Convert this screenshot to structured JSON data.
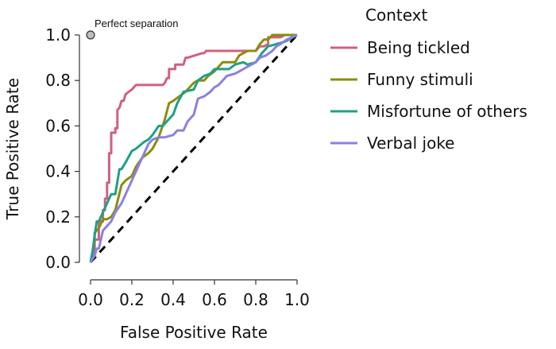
{
  "chart_data": {
    "type": "line",
    "title": "",
    "xlabel": "False Positive Rate",
    "ylabel": "True Positive Rate",
    "xlim": [
      0,
      1
    ],
    "ylim": [
      0,
      1
    ],
    "x_ticks": [
      "0.0",
      "0.2",
      "0.4",
      "0.6",
      "0.8",
      "1.0"
    ],
    "y_ticks": [
      "0.0",
      "0.2",
      "0.4",
      "0.6",
      "0.8",
      "1.0"
    ],
    "grid": false,
    "legend_title": "Context",
    "legend_position": "right",
    "reference_line": {
      "style": "dashed",
      "color": "#000000",
      "x": [
        0,
        1
      ],
      "y": [
        0,
        1
      ]
    },
    "annotation": {
      "label": "Perfect separation",
      "x": 0,
      "y": 1
    },
    "series": [
      {
        "name": "Being tickled",
        "color": "#D0607F",
        "x": [
          0,
          0.02,
          0.02,
          0.04,
          0.04,
          0.06,
          0.06,
          0.07,
          0.07,
          0.08,
          0.08,
          0.09,
          0.09,
          0.1,
          0.1,
          0.12,
          0.12,
          0.13,
          0.13,
          0.14,
          0.15,
          0.16,
          0.17,
          0.2,
          0.22,
          0.25,
          0.28,
          0.33,
          0.35,
          0.36,
          0.37,
          0.38,
          0.38,
          0.41,
          0.41,
          0.45,
          0.46,
          0.47,
          0.47,
          0.54,
          0.55,
          0.56,
          0.76,
          0.78,
          0.8,
          0.82,
          0.84,
          0.86,
          0.86,
          0.92,
          0.94,
          1.0
        ],
        "y": [
          0,
          0.05,
          0.1,
          0.1,
          0.18,
          0.18,
          0.23,
          0.23,
          0.28,
          0.28,
          0.35,
          0.35,
          0.48,
          0.48,
          0.57,
          0.57,
          0.59,
          0.59,
          0.67,
          0.68,
          0.71,
          0.71,
          0.74,
          0.76,
          0.78,
          0.78,
          0.78,
          0.78,
          0.78,
          0.79,
          0.81,
          0.81,
          0.85,
          0.85,
          0.87,
          0.87,
          0.9,
          0.9,
          0.9,
          0.92,
          0.92,
          0.93,
          0.93,
          0.93,
          0.93,
          0.95,
          0.95,
          0.96,
          0.99,
          0.99,
          1.0,
          1.0
        ]
      },
      {
        "name": "Funny stimuli",
        "color": "#8C8C0D",
        "x": [
          0,
          0.01,
          0.02,
          0.02,
          0.04,
          0.06,
          0.08,
          0.1,
          0.12,
          0.15,
          0.17,
          0.2,
          0.22,
          0.25,
          0.28,
          0.3,
          0.33,
          0.36,
          0.38,
          0.4,
          0.43,
          0.46,
          0.48,
          0.5,
          0.52,
          0.55,
          0.57,
          0.6,
          0.62,
          0.64,
          0.66,
          0.7,
          0.72,
          0.76,
          0.8,
          0.82,
          0.84,
          0.86,
          0.88,
          0.92,
          0.96,
          1.0
        ],
        "y": [
          0,
          0.05,
          0.1,
          0.13,
          0.15,
          0.19,
          0.19,
          0.2,
          0.23,
          0.34,
          0.36,
          0.38,
          0.42,
          0.46,
          0.48,
          0.5,
          0.55,
          0.63,
          0.7,
          0.71,
          0.73,
          0.75,
          0.77,
          0.79,
          0.8,
          0.8,
          0.82,
          0.84,
          0.86,
          0.88,
          0.88,
          0.88,
          0.91,
          0.93,
          0.93,
          0.96,
          0.98,
          0.98,
          1.0,
          1.0,
          1.0,
          1.0
        ]
      },
      {
        "name": "Misfortune of others",
        "color": "#1EA088",
        "x": [
          0,
          0.01,
          0.02,
          0.03,
          0.04,
          0.06,
          0.08,
          0.1,
          0.12,
          0.14,
          0.15,
          0.17,
          0.2,
          0.22,
          0.26,
          0.28,
          0.3,
          0.33,
          0.35,
          0.38,
          0.4,
          0.42,
          0.45,
          0.5,
          0.52,
          0.55,
          0.58,
          0.6,
          0.62,
          0.64,
          0.67,
          0.7,
          0.74,
          0.76,
          0.8,
          0.83,
          0.86,
          0.9,
          0.94,
          0.98,
          1.0
        ],
        "y": [
          0,
          0.05,
          0.12,
          0.18,
          0.18,
          0.22,
          0.26,
          0.3,
          0.3,
          0.41,
          0.41,
          0.44,
          0.49,
          0.5,
          0.53,
          0.54,
          0.56,
          0.6,
          0.6,
          0.63,
          0.65,
          0.7,
          0.75,
          0.76,
          0.8,
          0.82,
          0.83,
          0.85,
          0.85,
          0.85,
          0.85,
          0.87,
          0.88,
          0.87,
          0.88,
          0.92,
          0.95,
          0.96,
          0.97,
          0.99,
          1.0
        ]
      },
      {
        "name": "Verbal joke",
        "color": "#8C80E0",
        "x": [
          0,
          0.02,
          0.03,
          0.04,
          0.05,
          0.06,
          0.08,
          0.1,
          0.12,
          0.15,
          0.17,
          0.2,
          0.22,
          0.25,
          0.28,
          0.3,
          0.33,
          0.36,
          0.4,
          0.42,
          0.45,
          0.47,
          0.5,
          0.52,
          0.55,
          0.58,
          0.6,
          0.62,
          0.66,
          0.7,
          0.72,
          0.76,
          0.8,
          0.82,
          0.85,
          0.88,
          0.9,
          0.92,
          0.95,
          1.0
        ],
        "y": [
          0,
          0.03,
          0.06,
          0.06,
          0.1,
          0.14,
          0.16,
          0.18,
          0.22,
          0.26,
          0.3,
          0.36,
          0.4,
          0.46,
          0.52,
          0.54,
          0.55,
          0.55,
          0.56,
          0.58,
          0.58,
          0.62,
          0.65,
          0.72,
          0.73,
          0.75,
          0.77,
          0.78,
          0.82,
          0.83,
          0.84,
          0.86,
          0.88,
          0.9,
          0.91,
          0.93,
          0.95,
          0.96,
          0.98,
          1.0
        ]
      }
    ]
  }
}
